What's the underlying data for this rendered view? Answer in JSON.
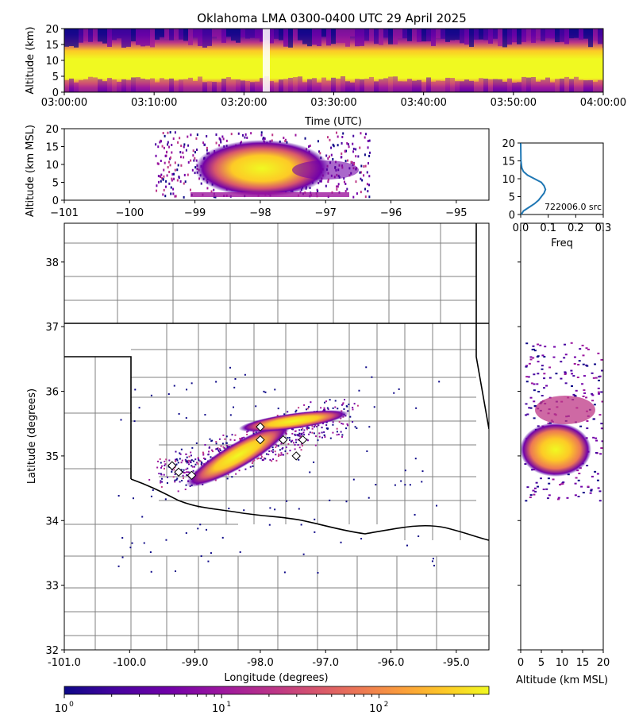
{
  "title": "Oklahoma LMA 0300-0400 UTC 29 April 2025",
  "colors": {
    "colormap": [
      "#0d0887",
      "#46039f",
      "#7201a8",
      "#9c179e",
      "#bd3786",
      "#d8576b",
      "#ed7953",
      "#fb9f3a",
      "#fdca26",
      "#f0f921"
    ],
    "frequency_line": "#1f77b4",
    "state_border": "#000000",
    "county_border": "#808080",
    "river_border": "#000000"
  },
  "chart_data": [
    {
      "id": "time_height",
      "type": "heatmap",
      "xlabel": "Time (UTC)",
      "ylabel": "Altitude (km)",
      "x_range": [
        "03:00:00",
        "04:00:00"
      ],
      "ylim": [
        0,
        20
      ],
      "xticks": [
        "03:00:00",
        "03:10:00",
        "03:20:00",
        "03:30:00",
        "03:40:00",
        "03:50:00",
        "04:00:00"
      ],
      "yticks": [
        "0",
        "5",
        "10",
        "15",
        "20"
      ],
      "dense_layer_km": [
        3,
        13
      ],
      "data_gap_time": "03:21:30"
    },
    {
      "id": "lon_alt",
      "type": "heatmap",
      "ylabel": "Altitude (km MSL)",
      "xlim": [
        -101.0,
        -94.5
      ],
      "ylim": [
        0,
        20
      ],
      "xticks": [
        "−101",
        "−100",
        "−99",
        "−98",
        "−97",
        "−96",
        "−95"
      ],
      "yticks": [
        "0",
        "5",
        "10",
        "15",
        "20"
      ],
      "core_lon": [
        -99.0,
        -97.5
      ],
      "core_alt_km": [
        1,
        14
      ]
    },
    {
      "id": "alt_histogram",
      "type": "line",
      "xlabel": "Freq",
      "xlim": [
        0.0,
        0.3
      ],
      "ylim": [
        0,
        20
      ],
      "xticks": [
        "0.0",
        "0.1",
        "0.2",
        "0.3"
      ],
      "yticks": [
        "0",
        "5",
        "10",
        "15",
        "20"
      ],
      "annotation": "722006.0 src",
      "x": [
        0.002,
        0.01,
        0.03,
        0.05,
        0.065,
        0.075,
        0.085,
        0.09,
        0.085,
        0.075,
        0.05,
        0.025,
        0.01,
        0.004,
        0.001,
        0.0
      ],
      "y": [
        0,
        1,
        2,
        3,
        4,
        5,
        6,
        7,
        8,
        9,
        10,
        11,
        12,
        13,
        15,
        20
      ]
    },
    {
      "id": "plan_view",
      "type": "heatmap",
      "xlabel": "Longitude (degrees)",
      "ylabel": "Latitude (degrees)",
      "xlim": [
        -101.0,
        -94.5
      ],
      "ylim": [
        32,
        38.6
      ],
      "xticks": [
        "-101.0",
        "-100.0",
        "-99.0",
        "-98.0",
        "-97.0",
        "-96.0",
        "-95.0"
      ],
      "yticks": [
        "32",
        "33",
        "34",
        "35",
        "36",
        "37",
        "38"
      ],
      "stations_lonlat": [
        [
          -99.35,
          34.85
        ],
        [
          -99.25,
          34.75
        ],
        [
          -99.05,
          34.7
        ],
        [
          -98.0,
          35.25
        ],
        [
          -97.65,
          35.25
        ],
        [
          -97.35,
          35.25
        ],
        [
          -98.0,
          35.45
        ],
        [
          -97.45,
          35.0
        ]
      ]
    },
    {
      "id": "alt_lat",
      "type": "heatmap",
      "xlabel": "Altitude (km MSL)",
      "xlim": [
        0,
        20
      ],
      "xticks": [
        "0",
        "5",
        "10",
        "15",
        "20"
      ]
    },
    {
      "id": "colorbar",
      "type": "heatmap",
      "scale": "log",
      "range": [
        1,
        500
      ],
      "tick_labels": [
        "10",
        "10",
        "10"
      ],
      "tick_exponents": [
        "0",
        "1",
        "2"
      ]
    }
  ]
}
